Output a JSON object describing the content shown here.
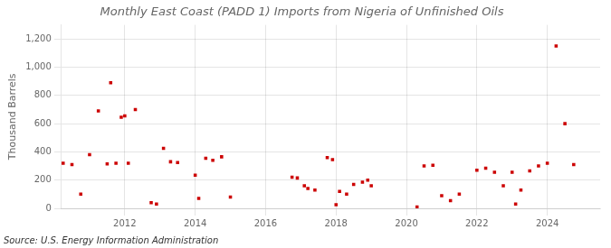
{
  "chart_data": {
    "type": "scatter",
    "title": "Monthly East Coast (PADD 1) Imports from Nigeria of Unfinished Oils",
    "ylabel": "Thousand Barrels",
    "annotations": [
      "Source: U.S. Energy Information Administration"
    ],
    "color": "#cc0000",
    "marker": "square",
    "grid": true,
    "xlim": [
      2010.2,
      2025.5
    ],
    "xticks": [
      2012,
      2014,
      2016,
      2018,
      2020,
      2022,
      2024
    ],
    "ylim": [
      0,
      1300
    ],
    "yticks": [
      0,
      200,
      400,
      600,
      800,
      {
        "value": 1000,
        "label": "1,000"
      },
      {
        "value": 1200,
        "label": "1,200"
      }
    ],
    "x": [
      2010.25,
      2010.5,
      2010.75,
      2011.0,
      2011.25,
      2011.5,
      2011.6,
      2011.75,
      2011.9,
      2012.0,
      2012.1,
      2012.3,
      2012.75,
      2012.9,
      2013.1,
      2013.3,
      2013.5,
      2014.0,
      2014.1,
      2014.3,
      2014.5,
      2014.75,
      2015.0,
      2016.75,
      2016.9,
      2017.1,
      2017.2,
      2017.4,
      2017.75,
      2017.9,
      2018.0,
      2018.1,
      2018.3,
      2018.5,
      2018.75,
      2018.9,
      2019.0,
      2020.3,
      2020.5,
      2020.75,
      2021.0,
      2021.25,
      2021.5,
      2022.0,
      2022.25,
      2022.5,
      2022.75,
      2023.0,
      2023.1,
      2023.25,
      2023.5,
      2023.75,
      2024.0,
      2024.25,
      2024.5,
      2024.75
    ],
    "values": [
      320,
      310,
      100,
      380,
      690,
      315,
      890,
      320,
      645,
      655,
      320,
      700,
      40,
      30,
      425,
      330,
      325,
      235,
      70,
      355,
      340,
      365,
      80,
      220,
      215,
      160,
      140,
      130,
      360,
      345,
      25,
      120,
      100,
      170,
      185,
      200,
      160,
      10,
      300,
      305,
      90,
      55,
      100,
      270,
      285,
      255,
      160,
      255,
      30,
      130,
      265,
      300,
      320,
      1150,
      600,
      310
    ]
  }
}
